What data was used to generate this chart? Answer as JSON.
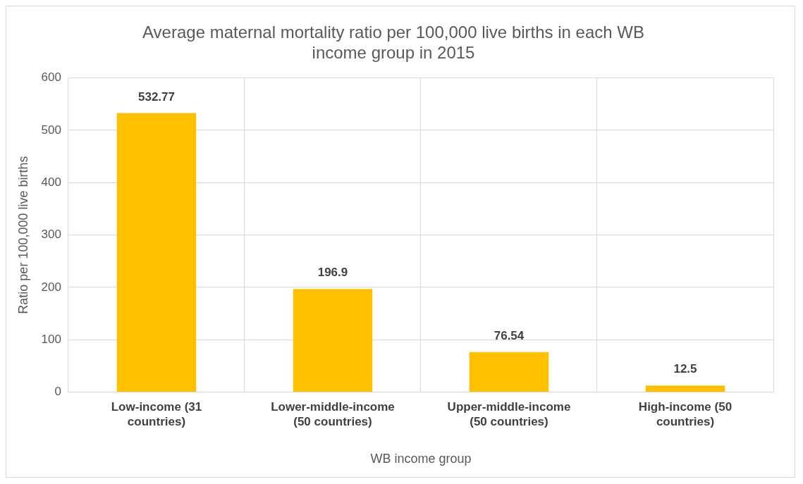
{
  "chart_data": {
    "type": "bar",
    "title": "Average maternal mortality ratio per 100,000 live births in each WB income group in 2015",
    "xlabel": "WB income group",
    "ylabel": "Ratio per 100,000 live births",
    "categories": [
      "Low-income (31 countries)",
      "Lower-middle-income (50 countries)",
      "Upper-middle-income (50 countries)",
      "High-income (50 countries)"
    ],
    "values": [
      532.77,
      196.9,
      76.54,
      12.5
    ],
    "color": "#ffc000",
    "ylim": [
      0,
      600
    ],
    "yticks": [
      0,
      100,
      200,
      300,
      400,
      500,
      600
    ],
    "grid": true,
    "data_labels": true
  }
}
